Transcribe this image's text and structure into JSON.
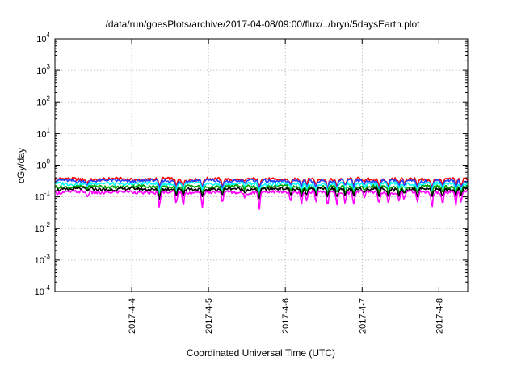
{
  "chart_data": {
    "type": "line",
    "title": "/data/run/goesPlots/archive/2017-04-08/09:00/flux/../bryn/5daysEarth.plot",
    "xlabel": "Coordinated Universal Time (UTC)",
    "ylabel": "cGy/day",
    "yscale": "log",
    "ylim": [
      0.0001,
      10000
    ],
    "yticks": [
      {
        "value": 0.0001,
        "base": "10",
        "exp": "-4"
      },
      {
        "value": 0.001,
        "base": "10",
        "exp": "-3"
      },
      {
        "value": 0.01,
        "base": "10",
        "exp": "-2"
      },
      {
        "value": 0.1,
        "base": "10",
        "exp": "-1"
      },
      {
        "value": 1,
        "base": "10",
        "exp": "0"
      },
      {
        "value": 10,
        "base": "10",
        "exp": "1"
      },
      {
        "value": 100,
        "base": "10",
        "exp": "2"
      },
      {
        "value": 1000,
        "base": "10",
        "exp": "3"
      },
      {
        "value": 10000,
        "base": "10",
        "exp": "4"
      }
    ],
    "xlim": [
      "2017-04-03 00:00",
      "2017-04-08 09:00"
    ],
    "xticks": [
      "2017-4-4",
      "2017-4-5",
      "2017-4-6",
      "2017-4-7",
      "2017-4-8"
    ],
    "grid": true,
    "legend": "none",
    "series": [
      {
        "color": "#ff0000",
        "base": 0.36
      },
      {
        "color": "#2040ff",
        "base": 0.32
      },
      {
        "color": "#00ffff",
        "base": 0.26
      },
      {
        "color": "#00a000",
        "base": 0.21
      },
      {
        "color": "#000000",
        "base": 0.175
      },
      {
        "color": "#ff00ff",
        "base": 0.14
      }
    ],
    "dips": [
      {
        "day": 0.42,
        "depth": 0.22
      },
      {
        "day": 1.36,
        "depth": 0.55
      },
      {
        "day": 1.58,
        "depth": 0.45
      },
      {
        "day": 1.67,
        "depth": 0.5
      },
      {
        "day": 1.92,
        "depth": 0.5
      },
      {
        "day": 2.18,
        "depth": 0.45
      },
      {
        "day": 2.47,
        "depth": 0.2
      },
      {
        "day": 2.66,
        "depth": 0.55
      },
      {
        "day": 3.07,
        "depth": 0.35
      },
      {
        "day": 3.21,
        "depth": 0.45
      },
      {
        "day": 3.28,
        "depth": 0.35
      },
      {
        "day": 3.4,
        "depth": 0.4
      },
      {
        "day": 3.55,
        "depth": 0.5
      },
      {
        "day": 3.67,
        "depth": 0.45
      },
      {
        "day": 3.78,
        "depth": 0.4
      },
      {
        "day": 3.89,
        "depth": 0.45
      },
      {
        "day": 4.03,
        "depth": 0.28
      },
      {
        "day": 4.22,
        "depth": 0.45
      },
      {
        "day": 4.34,
        "depth": 0.4
      },
      {
        "day": 4.48,
        "depth": 0.35
      },
      {
        "day": 4.55,
        "depth": 0.3
      },
      {
        "day": 4.72,
        "depth": 0.45
      },
      {
        "day": 4.91,
        "depth": 0.5
      },
      {
        "day": 5.05,
        "depth": 0.45
      },
      {
        "day": 5.22,
        "depth": 0.5
      },
      {
        "day": 5.29,
        "depth": 0.45
      }
    ]
  }
}
